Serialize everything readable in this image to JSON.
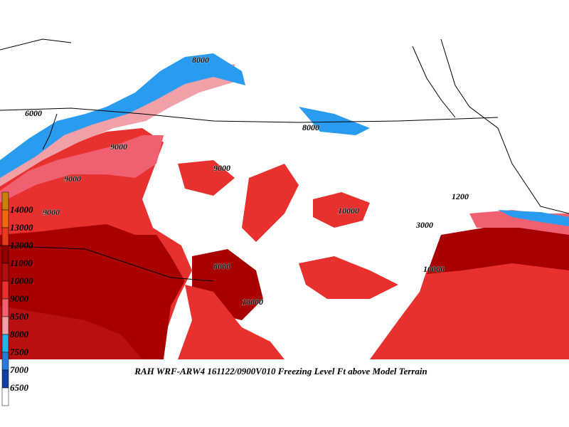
{
  "caption": "RAH WRF-ARW4 161122/0900V010  Freezing Level Ft above Model Terrain",
  "legend": [
    {
      "label": "14000",
      "color": "#c8820a"
    },
    {
      "label": "13000",
      "color": "#ee6a10"
    },
    {
      "label": "12000",
      "color": "#e83a1c"
    },
    {
      "label": "11000",
      "color": "#8c0000"
    },
    {
      "label": "10000",
      "color": "#b01010"
    },
    {
      "label": "9000",
      "color": "#e8302f"
    },
    {
      "label": "8500",
      "color": "#f06070"
    },
    {
      "label": "8000",
      "color": "#f2a0a8"
    },
    {
      "label": "7500",
      "color": "#18b8e8"
    },
    {
      "label": "7000",
      "color": "#2a7cd8"
    },
    {
      "label": "6500",
      "color": "#1040a0"
    }
  ],
  "contour_labels": [
    "8000",
    "9000",
    "6000",
    "9000",
    "9000",
    "9000",
    "8000",
    "10000",
    "1200",
    "3000",
    "10000",
    "8000",
    "10000"
  ]
}
